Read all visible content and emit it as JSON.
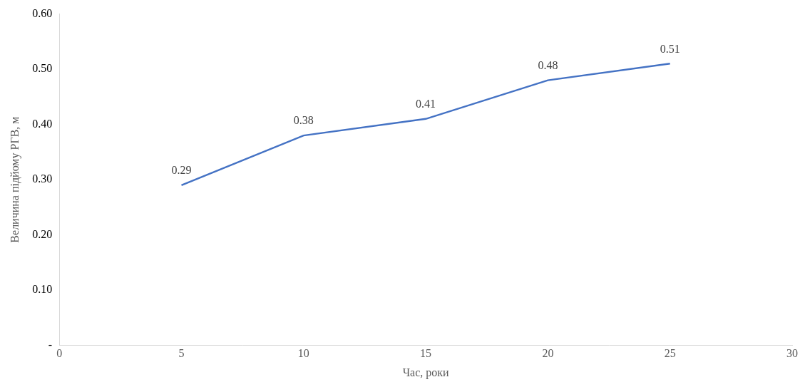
{
  "chart_data": {
    "type": "line",
    "x_label": "Час, роки",
    "y_label": "Величина підйому РГВ, м",
    "x": [
      5,
      10,
      15,
      20,
      25
    ],
    "values": [
      0.29,
      0.38,
      0.41,
      0.48,
      0.51
    ],
    "color": "#4472c4",
    "marker": "none",
    "data_labels": true,
    "grid": false,
    "xlim": [
      0,
      30
    ],
    "xticks": [
      0,
      5,
      10,
      15,
      20,
      25,
      30
    ],
    "ylim": [
      0,
      0.6
    ],
    "yticks": [
      {
        "value": 0,
        "label": "-"
      },
      {
        "value": 0.1,
        "label": "0.10"
      },
      {
        "value": 0.2,
        "label": "0.20"
      },
      {
        "value": 0.3,
        "label": "0.30"
      },
      {
        "value": 0.4,
        "label": "0.40"
      },
      {
        "value": 0.5,
        "label": "0.50"
      },
      {
        "value": 0.6,
        "label": "0.60"
      }
    ]
  }
}
